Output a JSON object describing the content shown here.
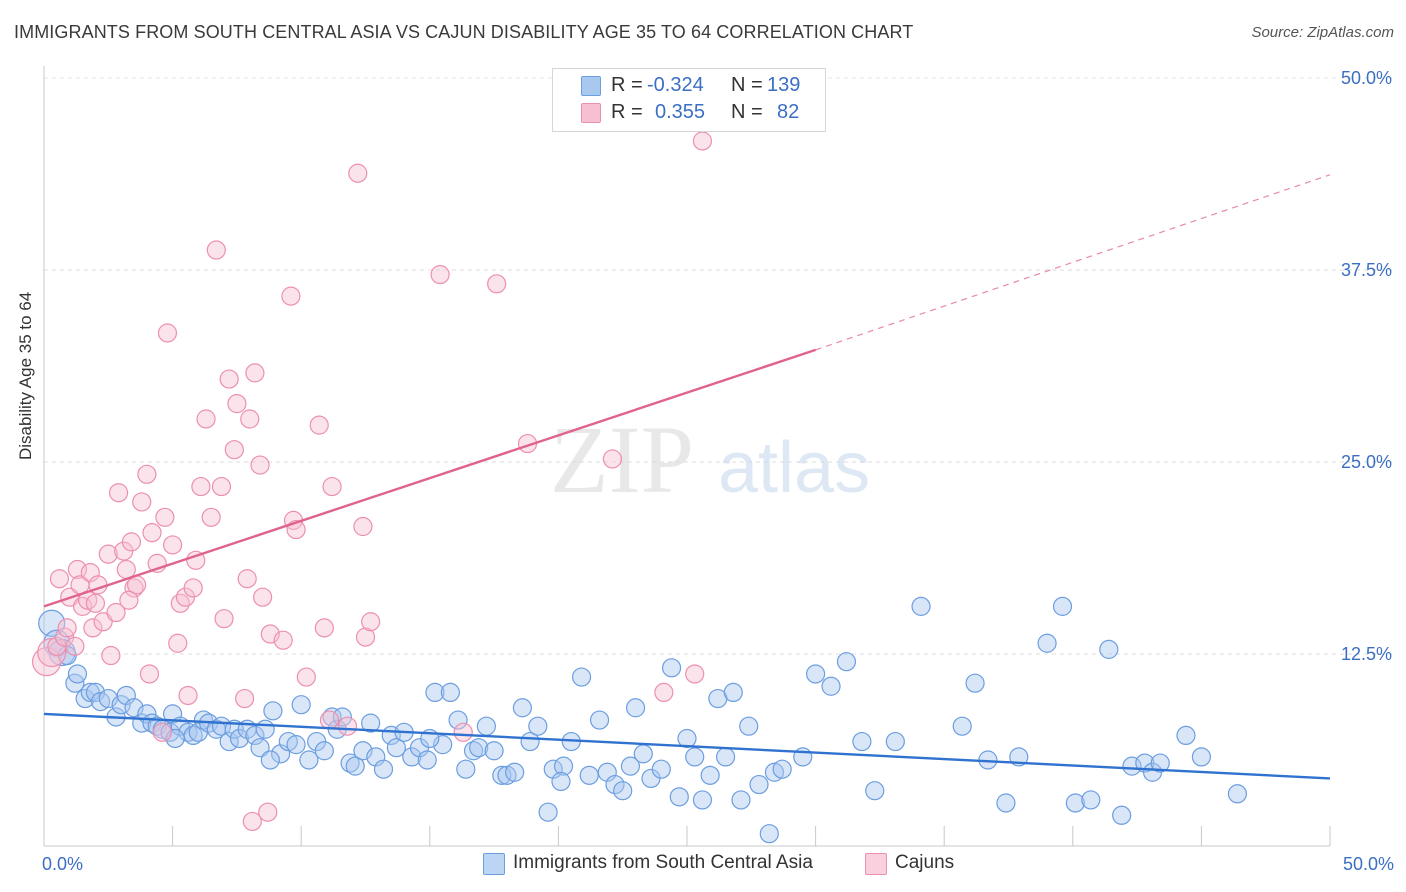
{
  "title": "IMMIGRANTS FROM SOUTH CENTRAL ASIA VS CAJUN DISABILITY AGE 35 TO 64 CORRELATION CHART",
  "source": "Source: ZipAtlas.com",
  "watermark": {
    "zip": "ZIP",
    "atlas": "atlas"
  },
  "legend": {
    "rows": [
      {
        "r_label": "R =",
        "r_value": "-0.324",
        "n_label": "N =",
        "n_value": "139",
        "color": "#a9c8f0",
        "border": "#6c9ee0"
      },
      {
        "r_label": "R =",
        "r_value": "0.355",
        "n_label": "N =",
        "n_value": "82",
        "color": "#f7c0d2",
        "border": "#ec8fb0"
      }
    ]
  },
  "bottom_legend": [
    {
      "label": "Immigrants from South Central Asia",
      "color": "#bcd5f5",
      "border": "#6c9ee0"
    },
    {
      "label": "Cajuns",
      "color": "#fad0de",
      "border": "#ec8fb0"
    }
  ],
  "chart_data": {
    "type": "scatter",
    "title": "IMMIGRANTS FROM SOUTH CENTRAL ASIA VS CAJUN DISABILITY AGE 35 TO 64 CORRELATION CHART",
    "xlabel": "",
    "ylabel": "Disability Age 35 to 64",
    "xlim": [
      0,
      50
    ],
    "ylim": [
      0,
      50
    ],
    "x_tick_labels": [
      "0.0%",
      "50.0%"
    ],
    "y_tick_labels": [
      "12.5%",
      "25.0%",
      "37.5%",
      "50.0%"
    ],
    "y_ticks": [
      12.5,
      25.0,
      37.5,
      50.0
    ],
    "grid": true,
    "series": [
      {
        "name": "Immigrants from South Central Asia",
        "color": "#6c9ee0",
        "fill": "#a9c8f0",
        "trend": {
          "x": [
            0,
            50
          ],
          "y": [
            8.6,
            4.4
          ],
          "color": "#2f72d0"
        },
        "points": [
          [
            0.3,
            14.5
          ],
          [
            0.5,
            13.2
          ],
          [
            0.7,
            12.6
          ],
          [
            0.9,
            12.4
          ],
          [
            1.2,
            10.6
          ],
          [
            1.3,
            11.2
          ],
          [
            1.6,
            9.6
          ],
          [
            1.8,
            10.0
          ],
          [
            2.0,
            10.0
          ],
          [
            2.2,
            9.4
          ],
          [
            2.5,
            9.6
          ],
          [
            2.8,
            8.4
          ],
          [
            3.0,
            9.2
          ],
          [
            3.2,
            9.8
          ],
          [
            3.5,
            9.0
          ],
          [
            3.8,
            8.0
          ],
          [
            4.0,
            8.6
          ],
          [
            4.2,
            8.0
          ],
          [
            4.4,
            7.8
          ],
          [
            4.6,
            7.6
          ],
          [
            4.9,
            7.4
          ],
          [
            5.0,
            8.6
          ],
          [
            5.3,
            7.8
          ],
          [
            5.6,
            7.4
          ],
          [
            5.8,
            7.2
          ],
          [
            6.0,
            7.4
          ],
          [
            6.2,
            8.2
          ],
          [
            6.4,
            8.0
          ],
          [
            6.7,
            7.6
          ],
          [
            6.9,
            7.8
          ],
          [
            7.2,
            6.8
          ],
          [
            7.4,
            7.6
          ],
          [
            7.6,
            7.0
          ],
          [
            7.9,
            7.6
          ],
          [
            8.2,
            7.2
          ],
          [
            8.4,
            6.4
          ],
          [
            8.6,
            7.6
          ],
          [
            8.9,
            8.8
          ],
          [
            9.2,
            6.0
          ],
          [
            9.5,
            6.8
          ],
          [
            9.8,
            6.6
          ],
          [
            10.0,
            9.2
          ],
          [
            10.3,
            5.6
          ],
          [
            10.6,
            6.8
          ],
          [
            10.9,
            6.2
          ],
          [
            11.2,
            8.4
          ],
          [
            11.4,
            7.6
          ],
          [
            11.6,
            8.4
          ],
          [
            11.9,
            5.4
          ],
          [
            12.1,
            5.2
          ],
          [
            12.4,
            6.2
          ],
          [
            12.7,
            8.0
          ],
          [
            12.9,
            5.8
          ],
          [
            13.2,
            5.0
          ],
          [
            13.5,
            7.2
          ],
          [
            13.7,
            6.4
          ],
          [
            14.0,
            7.4
          ],
          [
            14.3,
            5.8
          ],
          [
            14.6,
            6.4
          ],
          [
            14.9,
            5.6
          ],
          [
            15.2,
            10.0
          ],
          [
            15.5,
            6.6
          ],
          [
            15.8,
            10.0
          ],
          [
            16.1,
            8.2
          ],
          [
            16.4,
            5.0
          ],
          [
            16.7,
            6.2
          ],
          [
            16.9,
            6.4
          ],
          [
            17.2,
            7.8
          ],
          [
            17.5,
            6.2
          ],
          [
            17.8,
            4.6
          ],
          [
            18.0,
            4.6
          ],
          [
            18.3,
            4.8
          ],
          [
            18.6,
            9.0
          ],
          [
            18.9,
            6.8
          ],
          [
            19.2,
            7.8
          ],
          [
            19.6,
            2.2
          ],
          [
            19.8,
            5.0
          ],
          [
            20.2,
            5.2
          ],
          [
            20.5,
            6.8
          ],
          [
            20.9,
            11.0
          ],
          [
            21.2,
            4.6
          ],
          [
            21.6,
            8.2
          ],
          [
            21.9,
            4.8
          ],
          [
            22.2,
            4.0
          ],
          [
            22.5,
            3.6
          ],
          [
            22.8,
            5.2
          ],
          [
            23.0,
            9.0
          ],
          [
            23.3,
            6.0
          ],
          [
            23.6,
            4.4
          ],
          [
            24.0,
            5.0
          ],
          [
            24.4,
            11.6
          ],
          [
            24.7,
            3.2
          ],
          [
            25.0,
            7.0
          ],
          [
            25.3,
            5.8
          ],
          [
            25.6,
            3.0
          ],
          [
            25.9,
            4.6
          ],
          [
            26.2,
            9.6
          ],
          [
            26.5,
            5.8
          ],
          [
            26.8,
            10.0
          ],
          [
            27.1,
            3.0
          ],
          [
            27.4,
            7.8
          ],
          [
            27.8,
            4.0
          ],
          [
            28.2,
            0.8
          ],
          [
            28.4,
            4.8
          ],
          [
            28.7,
            5.0
          ],
          [
            29.5,
            5.8
          ],
          [
            30.0,
            11.2
          ],
          [
            30.6,
            10.4
          ],
          [
            31.2,
            12.0
          ],
          [
            31.8,
            6.8
          ],
          [
            32.3,
            3.6
          ],
          [
            33.1,
            6.8
          ],
          [
            34.1,
            15.6
          ],
          [
            35.7,
            7.8
          ],
          [
            36.2,
            10.6
          ],
          [
            36.7,
            5.6
          ],
          [
            37.4,
            2.8
          ],
          [
            37.9,
            5.8
          ],
          [
            39.0,
            13.2
          ],
          [
            39.6,
            15.6
          ],
          [
            40.1,
            2.8
          ],
          [
            40.7,
            3.0
          ],
          [
            41.4,
            12.8
          ],
          [
            41.9,
            2.0
          ],
          [
            42.3,
            5.2
          ],
          [
            42.8,
            5.4
          ],
          [
            43.1,
            4.8
          ],
          [
            43.4,
            5.4
          ],
          [
            44.4,
            7.2
          ],
          [
            45.0,
            5.8
          ],
          [
            46.4,
            3.4
          ],
          [
            5.1,
            7.0
          ],
          [
            8.8,
            5.6
          ],
          [
            15.0,
            7.0
          ],
          [
            20.1,
            4.2
          ]
        ]
      },
      {
        "name": "Cajuns",
        "color": "#ec8fb0",
        "fill": "#f7c0d2",
        "trend": {
          "x": [
            0,
            30
          ],
          "y": [
            15.6,
            32.3
          ],
          "color": "#e0628f",
          "dashed_extension": {
            "x": [
              30,
              50
            ],
            "y": [
              32.3,
              43.7
            ]
          }
        },
        "points": [
          [
            0.1,
            12.0
          ],
          [
            0.3,
            12.6
          ],
          [
            0.5,
            13.0
          ],
          [
            0.6,
            17.4
          ],
          [
            0.8,
            13.6
          ],
          [
            0.9,
            14.2
          ],
          [
            1.0,
            16.2
          ],
          [
            1.2,
            13.0
          ],
          [
            1.3,
            18.0
          ],
          [
            1.4,
            17.0
          ],
          [
            1.5,
            15.6
          ],
          [
            1.7,
            16.0
          ],
          [
            1.8,
            17.8
          ],
          [
            1.9,
            14.2
          ],
          [
            2.0,
            15.8
          ],
          [
            2.1,
            17.0
          ],
          [
            2.3,
            14.6
          ],
          [
            2.5,
            19.0
          ],
          [
            2.6,
            12.4
          ],
          [
            2.8,
            15.2
          ],
          [
            2.9,
            23.0
          ],
          [
            3.1,
            19.2
          ],
          [
            3.2,
            18.0
          ],
          [
            3.4,
            19.8
          ],
          [
            3.5,
            16.8
          ],
          [
            3.6,
            17.0
          ],
          [
            3.8,
            22.4
          ],
          [
            4.0,
            24.2
          ],
          [
            4.1,
            11.2
          ],
          [
            4.2,
            20.4
          ],
          [
            4.4,
            18.4
          ],
          [
            4.6,
            7.4
          ],
          [
            4.7,
            21.4
          ],
          [
            4.8,
            33.4
          ],
          [
            5.0,
            19.6
          ],
          [
            5.2,
            13.2
          ],
          [
            5.3,
            15.8
          ],
          [
            5.5,
            16.2
          ],
          [
            5.6,
            9.8
          ],
          [
            5.8,
            16.8
          ],
          [
            5.9,
            18.6
          ],
          [
            6.1,
            23.4
          ],
          [
            6.3,
            27.8
          ],
          [
            6.5,
            21.4
          ],
          [
            6.7,
            38.8
          ],
          [
            6.9,
            23.4
          ],
          [
            7.0,
            14.8
          ],
          [
            7.2,
            30.4
          ],
          [
            7.4,
            25.8
          ],
          [
            7.5,
            28.8
          ],
          [
            7.8,
            9.6
          ],
          [
            7.9,
            17.4
          ],
          [
            8.0,
            27.8
          ],
          [
            8.1,
            1.6
          ],
          [
            8.2,
            30.8
          ],
          [
            8.4,
            24.8
          ],
          [
            8.5,
            16.2
          ],
          [
            8.7,
            2.2
          ],
          [
            8.8,
            13.8
          ],
          [
            9.3,
            13.4
          ],
          [
            9.6,
            35.8
          ],
          [
            9.7,
            21.2
          ],
          [
            9.8,
            20.6
          ],
          [
            10.2,
            11.0
          ],
          [
            10.7,
            27.4
          ],
          [
            10.9,
            14.2
          ],
          [
            11.1,
            8.2
          ],
          [
            11.2,
            23.4
          ],
          [
            11.8,
            7.8
          ],
          [
            12.2,
            43.8
          ],
          [
            12.4,
            20.8
          ],
          [
            12.5,
            13.6
          ],
          [
            12.7,
            14.6
          ],
          [
            15.4,
            37.2
          ],
          [
            16.3,
            7.4
          ],
          [
            17.6,
            36.6
          ],
          [
            18.8,
            26.2
          ],
          [
            22.1,
            25.2
          ],
          [
            24.1,
            10.0
          ],
          [
            25.3,
            11.2
          ],
          [
            25.6,
            45.9
          ],
          [
            3.3,
            16.0
          ]
        ]
      }
    ]
  }
}
